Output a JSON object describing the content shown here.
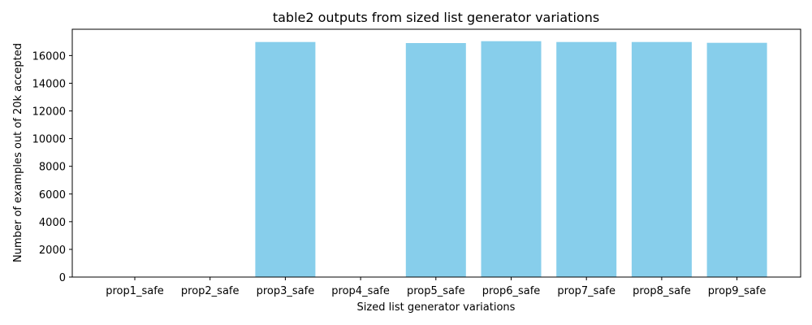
{
  "chart_data": {
    "type": "bar",
    "title": "table2 outputs from sized list generator variations",
    "xlabel": "Sized list generator variations",
    "ylabel": "Number of examples out of 20k accepted",
    "categories": [
      "prop1_safe",
      "prop2_safe",
      "prop3_safe",
      "prop4_safe",
      "prop5_safe",
      "prop6_safe",
      "prop7_safe",
      "prop8_safe",
      "prop9_safe"
    ],
    "values": [
      0,
      0,
      16980,
      0,
      16900,
      17040,
      16980,
      16980,
      16920
    ],
    "ylim": [
      0,
      17900
    ],
    "yticks": [
      0,
      2000,
      4000,
      6000,
      8000,
      10000,
      12000,
      14000,
      16000
    ],
    "grid": false,
    "bar_color": "#87ceeb"
  }
}
